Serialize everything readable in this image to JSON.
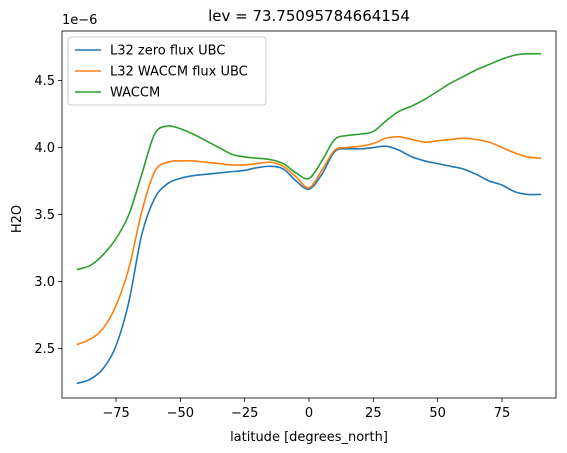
{
  "chart_data": {
    "type": "line",
    "title": "lev = 73.75095784664154",
    "xlabel": "latitude [degrees_north]",
    "ylabel": "H2O",
    "offset_text": "1e−6",
    "xlim": [
      -96,
      96
    ],
    "ylim": [
      2.13,
      4.87
    ],
    "x_ticks": [
      -75,
      -50,
      -25,
      0,
      25,
      50,
      75
    ],
    "x_tick_labels": [
      "−75",
      "−50",
      "−25",
      "0",
      "25",
      "50",
      "75"
    ],
    "y_ticks": [
      2.5,
      3.0,
      3.5,
      4.0,
      4.5
    ],
    "y_tick_labels": [
      "2.5",
      "3.0",
      "3.5",
      "4.0",
      "4.5"
    ],
    "grid": false,
    "legend": "top-left",
    "x": [
      -90,
      -85,
      -80,
      -75,
      -70,
      -65,
      -60,
      -55,
      -50,
      -45,
      -40,
      -35,
      -30,
      -25,
      -20,
      -15,
      -10,
      -5,
      0,
      5,
      10,
      15,
      20,
      25,
      30,
      35,
      40,
      45,
      50,
      55,
      60,
      65,
      70,
      75,
      80,
      85,
      90
    ],
    "series": [
      {
        "name": "L32 zero flux UBC",
        "color": "#1f77b4",
        "values": [
          2.24,
          2.27,
          2.35,
          2.52,
          2.85,
          3.35,
          3.62,
          3.73,
          3.77,
          3.79,
          3.8,
          3.81,
          3.82,
          3.83,
          3.85,
          3.86,
          3.84,
          3.75,
          3.69,
          3.8,
          3.97,
          3.99,
          3.99,
          4.0,
          4.01,
          3.98,
          3.93,
          3.9,
          3.88,
          3.86,
          3.84,
          3.8,
          3.75,
          3.72,
          3.67,
          3.65,
          3.65
        ]
      },
      {
        "name": "L32 WACCM flux UBC",
        "color": "#ff7f0e",
        "values": [
          2.53,
          2.57,
          2.65,
          2.82,
          3.1,
          3.52,
          3.82,
          3.89,
          3.9,
          3.9,
          3.89,
          3.88,
          3.87,
          3.87,
          3.88,
          3.89,
          3.86,
          3.78,
          3.7,
          3.83,
          3.98,
          4.0,
          4.01,
          4.03,
          4.07,
          4.08,
          4.06,
          4.04,
          4.05,
          4.06,
          4.07,
          4.06,
          4.04,
          4.0,
          3.96,
          3.93,
          3.92
        ]
      },
      {
        "name": "WACCM",
        "color": "#2ca02c",
        "values": [
          3.09,
          3.12,
          3.2,
          3.32,
          3.5,
          3.8,
          4.1,
          4.16,
          4.14,
          4.1,
          4.05,
          4.0,
          3.95,
          3.93,
          3.92,
          3.91,
          3.88,
          3.81,
          3.77,
          3.9,
          4.06,
          4.09,
          4.1,
          4.12,
          4.2,
          4.27,
          4.31,
          4.36,
          4.42,
          4.48,
          4.53,
          4.58,
          4.62,
          4.66,
          4.69,
          4.7,
          4.7
        ]
      }
    ]
  }
}
